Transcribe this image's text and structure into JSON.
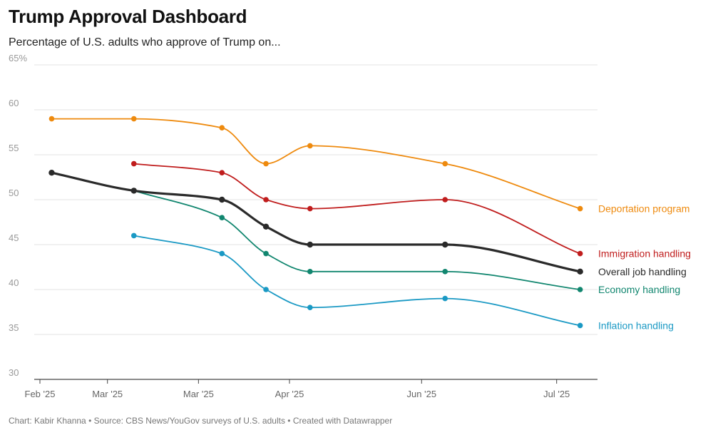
{
  "header": {
    "title": "Trump Approval Dashboard",
    "subtitle": "Percentage of U.S. adults who approve of Trump on..."
  },
  "footer": {
    "credit": "Chart: Kabir Khanna • Source: CBS News/YouGov surveys of U.S. adults • Created with Datawrapper"
  },
  "chart_data": {
    "type": "line",
    "title": "Trump Approval Dashboard",
    "subtitle": "Percentage of U.S. adults who approve of Trump on...",
    "xlabel": "",
    "ylabel": "",
    "x_dates": [
      "2025-02-01",
      "2025-03-01",
      "2025-03-31",
      "2025-04-15",
      "2025-04-30",
      "2025-06-15",
      "2025-07-31"
    ],
    "x_domain": [
      "2025-01-28",
      "2025-08-03"
    ],
    "x_ticks": [
      {
        "label": "Feb '25",
        "date": "2025-01-28"
      },
      {
        "label": "Mar '25",
        "date": "2025-02-20"
      },
      {
        "label": "Mar '25",
        "date": "2025-03-23"
      },
      {
        "label": "Apr '25",
        "date": "2025-04-23"
      },
      {
        "label": "Jun '25",
        "date": "2025-06-07"
      },
      {
        "label": "Jul '25",
        "date": "2025-07-23"
      }
    ],
    "ylim": [
      30,
      65
    ],
    "y_ticks": [
      30,
      35,
      40,
      45,
      50,
      55,
      60,
      65
    ],
    "y_tick_labels": [
      "30",
      "35",
      "40",
      "45",
      "50",
      "55",
      "60",
      "65%"
    ],
    "grid": true,
    "legend": "direct labels at right end of lines",
    "series": [
      {
        "name": "Deportation program",
        "color": "#ee8a0e",
        "width": 1.8,
        "values": [
          59,
          59,
          58,
          54,
          56,
          54,
          49
        ]
      },
      {
        "name": "Immigration handling",
        "color": "#c01d1d",
        "width": 1.8,
        "values": [
          null,
          54,
          53,
          50,
          49,
          50,
          44
        ]
      },
      {
        "name": "Overall job handling",
        "color": "#2a2a2a",
        "width": 3.2,
        "values": [
          53,
          51,
          50,
          47,
          45,
          45,
          42
        ]
      },
      {
        "name": "Economy handling",
        "color": "#11866f",
        "width": 1.8,
        "values": [
          null,
          51,
          48,
          44,
          42,
          42,
          40
        ]
      },
      {
        "name": "Inflation handling",
        "color": "#1a99c4",
        "width": 1.8,
        "values": [
          null,
          46,
          44,
          40,
          38,
          39,
          36
        ]
      }
    ]
  }
}
